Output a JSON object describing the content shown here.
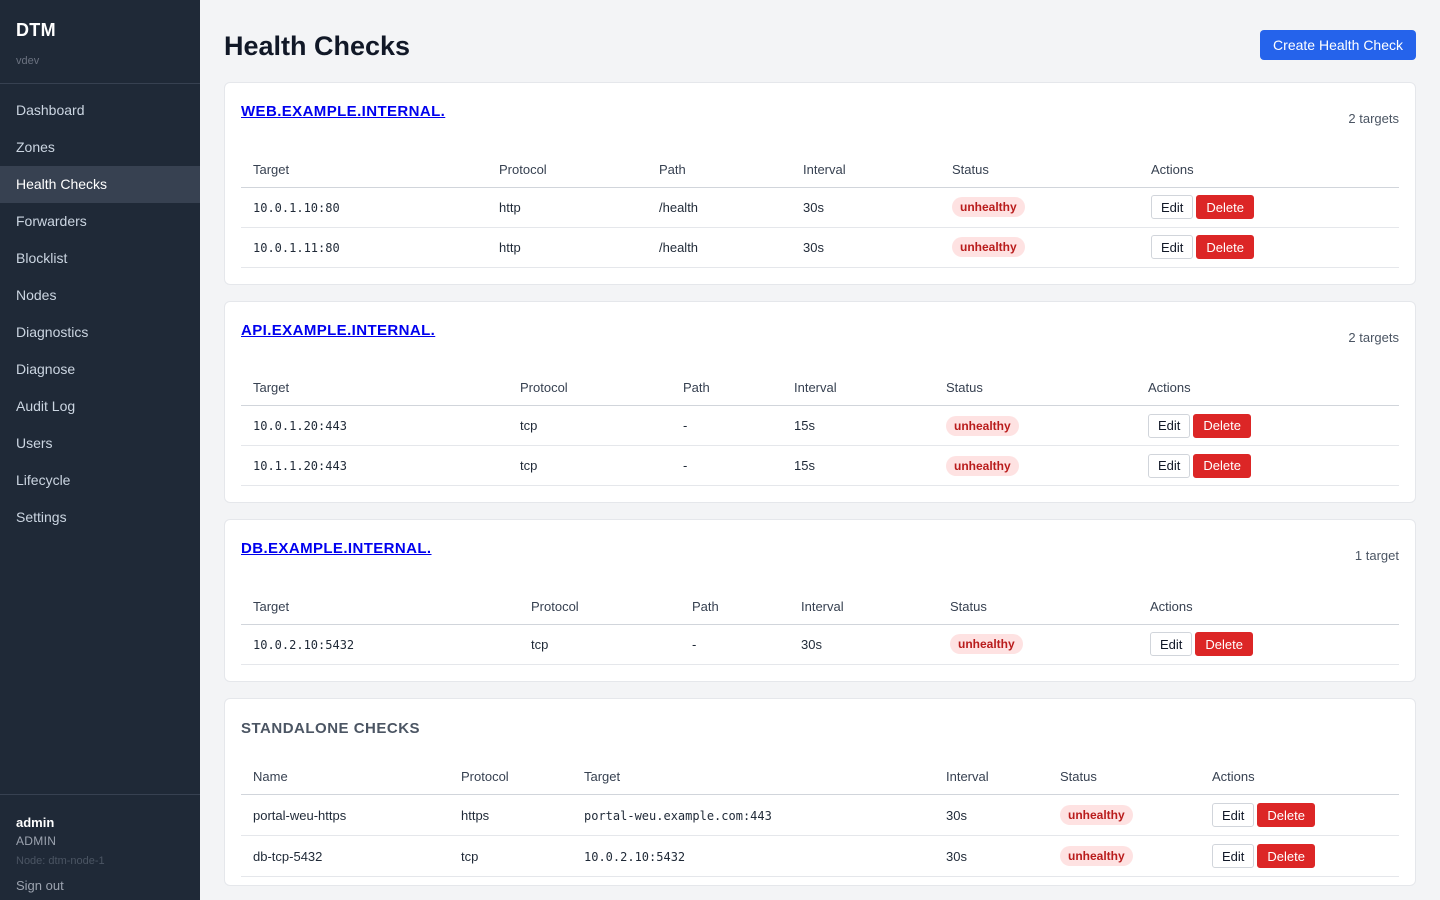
{
  "sidebar": {
    "brand": "DTM",
    "version": "vdev",
    "items": [
      {
        "label": "Dashboard"
      },
      {
        "label": "Zones"
      },
      {
        "label": "Health Checks"
      },
      {
        "label": "Forwarders"
      },
      {
        "label": "Blocklist"
      },
      {
        "label": "Nodes"
      },
      {
        "label": "Diagnostics"
      },
      {
        "label": "Diagnose"
      },
      {
        "label": "Audit Log"
      },
      {
        "label": "Users"
      },
      {
        "label": "Lifecycle"
      },
      {
        "label": "Settings"
      }
    ],
    "active_index": 2,
    "user": {
      "name": "admin",
      "role": "ADMIN",
      "node": "Node: dtm-node-1",
      "sign_out": "Sign out"
    }
  },
  "header": {
    "title": "Health Checks",
    "create_label": "Create Health Check"
  },
  "table_headers": {
    "target": "Target",
    "protocol": "Protocol",
    "path": "Path",
    "interval": "Interval",
    "status": "Status",
    "actions": "Actions",
    "name": "Name"
  },
  "actions": {
    "edit": "Edit",
    "delete": "Delete"
  },
  "groups": [
    {
      "name": "WEB.EXAMPLE.INTERNAL.",
      "count": "2 targets",
      "rows": [
        {
          "target": "10.0.1.10:80",
          "protocol": "http",
          "path": "/health",
          "interval": "30s",
          "status": "unhealthy"
        },
        {
          "target": "10.0.1.11:80",
          "protocol": "http",
          "path": "/health",
          "interval": "30s",
          "status": "unhealthy"
        }
      ]
    },
    {
      "name": "API.EXAMPLE.INTERNAL.",
      "count": "2 targets",
      "rows": [
        {
          "target": "10.0.1.20:443",
          "protocol": "tcp",
          "path": "-",
          "interval": "15s",
          "status": "unhealthy"
        },
        {
          "target": "10.1.1.20:443",
          "protocol": "tcp",
          "path": "-",
          "interval": "15s",
          "status": "unhealthy"
        }
      ]
    },
    {
      "name": "DB.EXAMPLE.INTERNAL.",
      "count": "1 target",
      "rows": [
        {
          "target": "10.0.2.10:5432",
          "protocol": "tcp",
          "path": "-",
          "interval": "30s",
          "status": "unhealthy"
        }
      ]
    }
  ],
  "standalone": {
    "title": "STANDALONE CHECKS",
    "rows": [
      {
        "name": "portal-weu-https",
        "protocol": "https",
        "target": "portal-weu.example.com:443",
        "interval": "30s",
        "status": "unhealthy"
      },
      {
        "name": "db-tcp-5432",
        "protocol": "tcp",
        "target": "10.0.2.10:5432",
        "interval": "30s",
        "status": "unhealthy"
      }
    ]
  },
  "colors": {
    "sidebar_bg": "#1f2937",
    "primary": "#2563eb",
    "danger": "#dc2626",
    "badge_bg": "#fee2e2",
    "badge_text": "#b91c1c"
  }
}
